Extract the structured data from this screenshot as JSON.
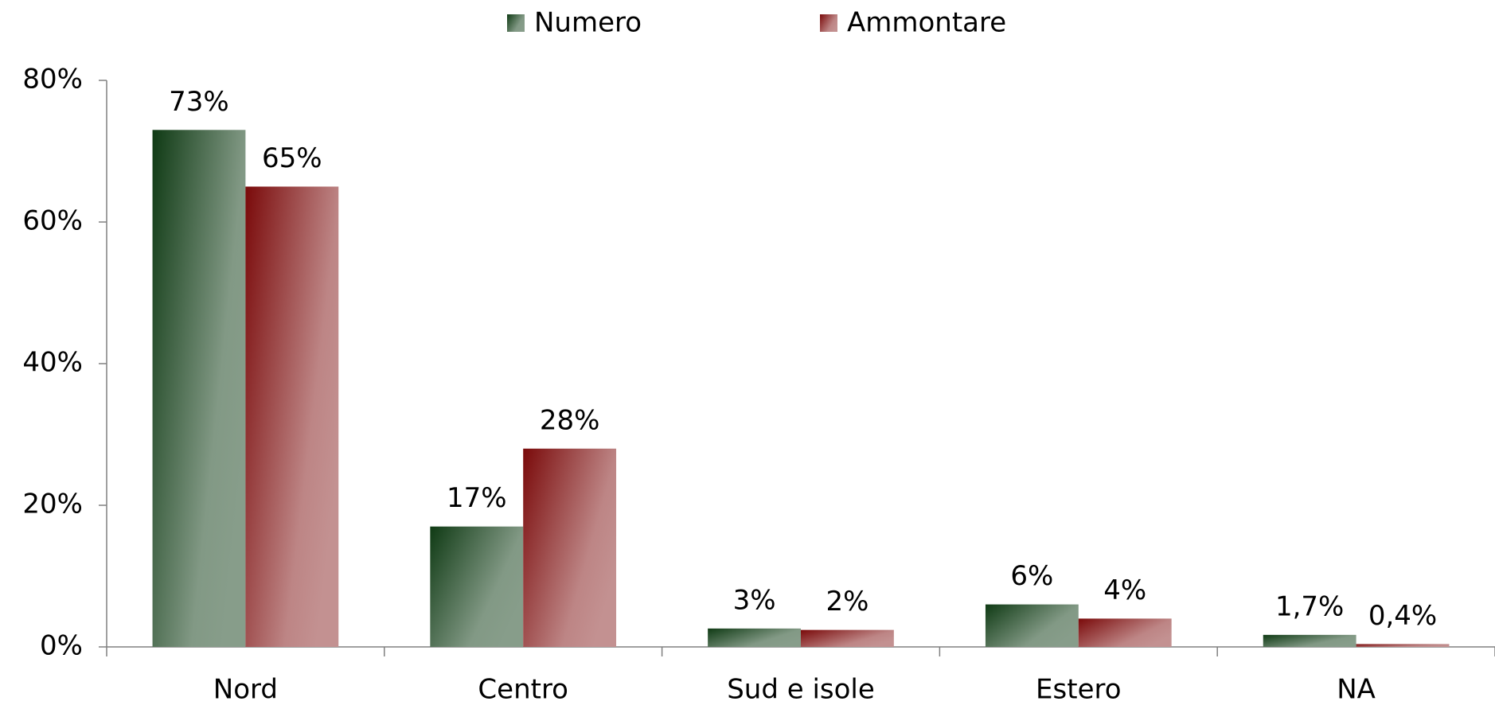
{
  "chart_data": {
    "type": "bar",
    "categories": [
      "Nord",
      "Centro",
      "Sud e isole",
      "Estero",
      "NA"
    ],
    "series": [
      {
        "name": "Numero",
        "color": "#0f3a14",
        "values": [
          73,
          17,
          2.6,
          6,
          1.7
        ],
        "value_labels": [
          "73%",
          "17%",
          "3%",
          "6%",
          "1,7%"
        ]
      },
      {
        "name": "Ammontare",
        "color": "#7a0a0a",
        "values": [
          65,
          28,
          2.4,
          4,
          0.4
        ],
        "value_labels": [
          "65%",
          "28%",
          "2%",
          "4%",
          "0,4%"
        ]
      }
    ],
    "ylim": [
      0,
      80
    ],
    "yticks": [
      {
        "value": 0,
        "label": "0%"
      },
      {
        "value": 20,
        "label": "20%"
      },
      {
        "value": 40,
        "label": "40%"
      },
      {
        "value": 60,
        "label": "60%"
      },
      {
        "value": 80,
        "label": "80%"
      }
    ],
    "legend": "top"
  }
}
